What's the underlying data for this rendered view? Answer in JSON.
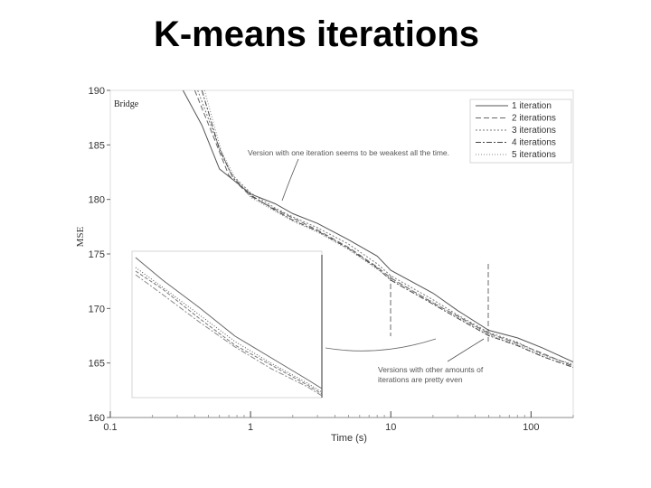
{
  "slide": {
    "title": "K-means iterations"
  },
  "chart_data": {
    "type": "line",
    "xlabel": "Time (s)",
    "ylabel": "MSE",
    "xscale": "log",
    "xlim": [
      0.1,
      200
    ],
    "ylim": [
      160,
      190
    ],
    "x_ticks": [
      0.1,
      1,
      10,
      100
    ],
    "x_tick_labels": [
      "0.1",
      "1",
      "10",
      "100"
    ],
    "y_ticks": [
      160,
      165,
      170,
      175,
      180,
      185,
      190
    ],
    "y_tick_labels": [
      "160",
      "165",
      "170",
      "175",
      "180",
      "185",
      "190"
    ],
    "dataset_label": "Bridge",
    "legend_position": "top-right",
    "annotations": [
      {
        "text": "Version with one iteration seems to be weakest all the time."
      },
      {
        "text": "Versions with other amounts of"
      },
      {
        "text": "iterations are pretty even"
      }
    ],
    "series": [
      {
        "name": "1 iteration",
        "color": "#555555",
        "dash": "none",
        "x": [
          0.33,
          0.45,
          0.6,
          0.75,
          1.0,
          1.5,
          2,
          3,
          5,
          8,
          10,
          20,
          30,
          50,
          80,
          120,
          200
        ],
        "y": [
          190,
          186.8,
          182.8,
          181.8,
          180.5,
          179.6,
          178.7,
          177.8,
          176.3,
          174.8,
          173.5,
          171.4,
          169.8,
          168,
          167.3,
          166.4,
          165.1
        ]
      },
      {
        "name": "2 iterations",
        "color": "#666666",
        "dash": "6,3",
        "x": [
          0.4,
          0.55,
          0.7,
          1.0,
          1.5,
          2,
          3,
          5,
          8,
          10,
          20,
          30,
          50,
          80,
          120,
          200
        ],
        "y": [
          190,
          185.6,
          182.2,
          180.3,
          179.1,
          178.3,
          177.2,
          175.6,
          173.8,
          172.8,
          170.5,
          169.3,
          167.7,
          166.8,
          165.9,
          164.7
        ]
      },
      {
        "name": "3 iterations",
        "color": "#777777",
        "dash": "2,2",
        "x": [
          0.42,
          0.58,
          0.72,
          1.0,
          1.5,
          2,
          3,
          5,
          8,
          10,
          20,
          30,
          50,
          80,
          120,
          200
        ],
        "y": [
          190,
          185.2,
          182.4,
          180.6,
          179.2,
          178.4,
          177.4,
          175.9,
          174.1,
          173,
          170.8,
          169.4,
          167.8,
          166.9,
          165.8,
          164.8
        ]
      },
      {
        "name": "4 iterations",
        "color": "#444444",
        "dash": "6,2,2,2",
        "x": [
          0.45,
          0.6,
          0.75,
          1.0,
          1.5,
          2,
          3,
          5,
          8,
          10,
          20,
          30,
          50,
          80,
          120,
          200
        ],
        "y": [
          190,
          184.6,
          182,
          180.4,
          179,
          178.1,
          177.1,
          175.5,
          173.7,
          172.6,
          170.4,
          169.1,
          167.5,
          166.6,
          165.6,
          164.6
        ]
      },
      {
        "name": "5 iterations",
        "color": "#888888",
        "dash": "1,2",
        "x": [
          0.47,
          0.62,
          0.78,
          1.0,
          1.5,
          2,
          3,
          5,
          8,
          10,
          20,
          30,
          50,
          80,
          120,
          200
        ],
        "y": [
          190,
          184.4,
          181.9,
          180.2,
          178.9,
          178,
          177,
          175.4,
          173.6,
          172.7,
          170.6,
          169.2,
          167.6,
          166.7,
          165.7,
          164.9
        ]
      }
    ]
  }
}
